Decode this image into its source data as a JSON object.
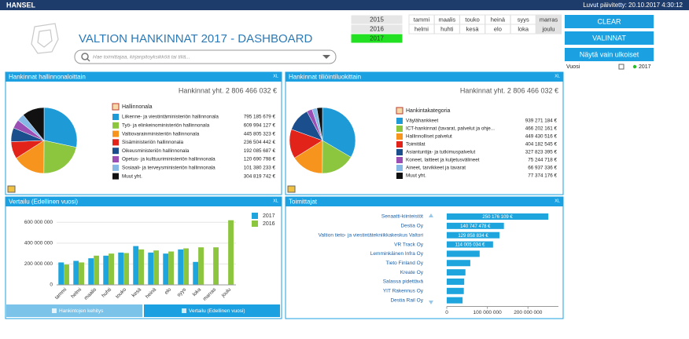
{
  "header": {
    "brand": "HANSEL",
    "updated": "Luvut päivitetty: 20.10.2017 4:30:12"
  },
  "title": "VALTION HANKINNAT 2017 - DASHBOARD",
  "search_placeholder": "Hae toimittajaa, kirjanpitoyksikköä tai tiliä...",
  "years": {
    "items": [
      "2015",
      "2016",
      "2017"
    ],
    "selected": 2
  },
  "months": {
    "rows": [
      [
        "tammi",
        "maalis",
        "touko",
        "heinä",
        "syys",
        "marras"
      ],
      [
        "helmi",
        "huhti",
        "kesä",
        "elo",
        "loka",
        "joulu"
      ]
    ],
    "highlighted_column": 5
  },
  "buttons": [
    "CLEAR",
    "VALINNAT",
    "Näytä vain ulkoiset"
  ],
  "filter": {
    "label": "Vuosi",
    "value": "2017"
  },
  "panels": [
    {
      "title": "Hankinnat hallinnonaloittain",
      "corner": "XL",
      "total": "Hankinnat yht. 2 806 466 032 €",
      "chart_data": {
        "type": "pie",
        "legend_title": "Hallinnonala",
        "categories": [
          "Liikenne- ja viestintäministeriön hallinnonala",
          "Työ- ja elinkeinoministeriön hallinnonala",
          "Valtiovarainministeriön hallinnonala",
          "Sisäministeriön hallinnonala",
          "Oikeusministeriön hallinnonala",
          "Opetus- ja kulttuuriministeriön hallinnonala",
          "Sosiaali- ja terveysministeriön hallinnonala",
          "Muut yht."
        ],
        "values": [
          795185679,
          609994127,
          445805323,
          236504442,
          192085687,
          120690798,
          101380233,
          304819742
        ],
        "value_labels": [
          "795 185 679 €",
          "609 994 127 €",
          "445 805 323 €",
          "236 504 442 €",
          "192 085 687 €",
          "120 690 798 €",
          "101 380 233 €",
          "304 819 742 €"
        ],
        "colors": [
          "#1e9bd7",
          "#8cc63f",
          "#f7941d",
          "#e2231a",
          "#1b4e8c",
          "#9b4fb4",
          "#86b8e6",
          "#111111"
        ]
      }
    },
    {
      "title": "Hankinnat tiliöintiluokittain",
      "corner": "XL",
      "total": "Hankinnat yht. 2 806 466 032 €",
      "chart_data": {
        "type": "pie",
        "legend_title": "Hankintakategoria",
        "categories": [
          "Väylähankkeet",
          "ICT-hankinnat (tavarat, palvelut ja ohje...",
          "Hallinnolliset palvelut",
          "Toimitilat",
          "Asiantuntija- ja tutkimuspalvelut",
          "Koneet, laitteet ja kuljetusvälineet",
          "Aineet, tarvikkeet ja tavarat",
          "Muut yht."
        ],
        "values": [
          939271184,
          466202161,
          449430516,
          404182545,
          327823395,
          75244718,
          66937336,
          77374176
        ],
        "value_labels": [
          "939 271 184 €",
          "466 202 161 €",
          "449 430 516 €",
          "404 182 545 €",
          "327 823 395 €",
          "75 244 718 €",
          "66 937 336 €",
          "77 374 176 €"
        ],
        "colors": [
          "#1e9bd7",
          "#8cc63f",
          "#f7941d",
          "#e2231a",
          "#1b4e8c",
          "#9b4fb4",
          "#86b8e6",
          "#111111"
        ]
      }
    },
    {
      "title": "Vertailu (Edellinen vuosi)",
      "corner": "XL",
      "chart_data": {
        "type": "bar",
        "categories": [
          "tammi",
          "helmi",
          "maalis",
          "huhti",
          "touko",
          "kesä",
          "heinä",
          "elo",
          "syys",
          "loka",
          "marras",
          "joulu"
        ],
        "series": [
          {
            "name": "2017",
            "color": "#1ea5de",
            "values": [
              215000000,
              230000000,
              255000000,
              280000000,
              310000000,
              372000000,
              310000000,
              300000000,
              340000000,
              220000000,
              null,
              null
            ]
          },
          {
            "name": "2016",
            "color": "#8cc63f",
            "values": [
              195000000,
              215000000,
              280000000,
              300000000,
              305000000,
              340000000,
              330000000,
              320000000,
              350000000,
              360000000,
              360000000,
              620000000
            ]
          }
        ],
        "ylim": [
          0,
          700000000
        ],
        "yticks": [
          {
            "value": 0,
            "label": "0"
          },
          {
            "value": 200000000,
            "label": "200 000 000"
          },
          {
            "value": 400000000,
            "label": "400 000 000"
          },
          {
            "value": 600000000,
            "label": "600 000 000"
          }
        ],
        "grid": true
      },
      "tabs": {
        "items": [
          "Hankintojen kehitys",
          "Vertailu (Edellinen vuosi)"
        ],
        "active": 1
      }
    },
    {
      "title": "Toimittajat",
      "corner": "XL",
      "chart_data": {
        "type": "hbar",
        "color": "#1ea5de",
        "categories": [
          "Senaatti-kiinteistöt",
          "Destia Oy",
          "Valtion tieto- ja viestintätekniikkakeskus Valtori",
          "VR Track Oy",
          "Lemminkäinen Infra Oy",
          "Tieto Finland Oy",
          "Kreate Oy",
          "Salassa pidettävä",
          "YIT Rakennus Oy",
          "Destia Rail Oy"
        ],
        "values": [
          250176109,
          140747478,
          129858834,
          114005034,
          81000000,
          58000000,
          46000000,
          43000000,
          42000000,
          39000000
        ],
        "value_labels": [
          "250 176 109 €",
          "140 747 478 €",
          "129 858 834 €",
          "114 005 034 €",
          null,
          null,
          null,
          null,
          null,
          null
        ],
        "xlim": [
          0,
          275000000
        ],
        "xticks": [
          {
            "value": 0,
            "label": "0"
          },
          {
            "value": 100000000,
            "label": "100 000 000"
          },
          {
            "value": 200000000,
            "label": "200 000 000"
          }
        ]
      }
    }
  ]
}
